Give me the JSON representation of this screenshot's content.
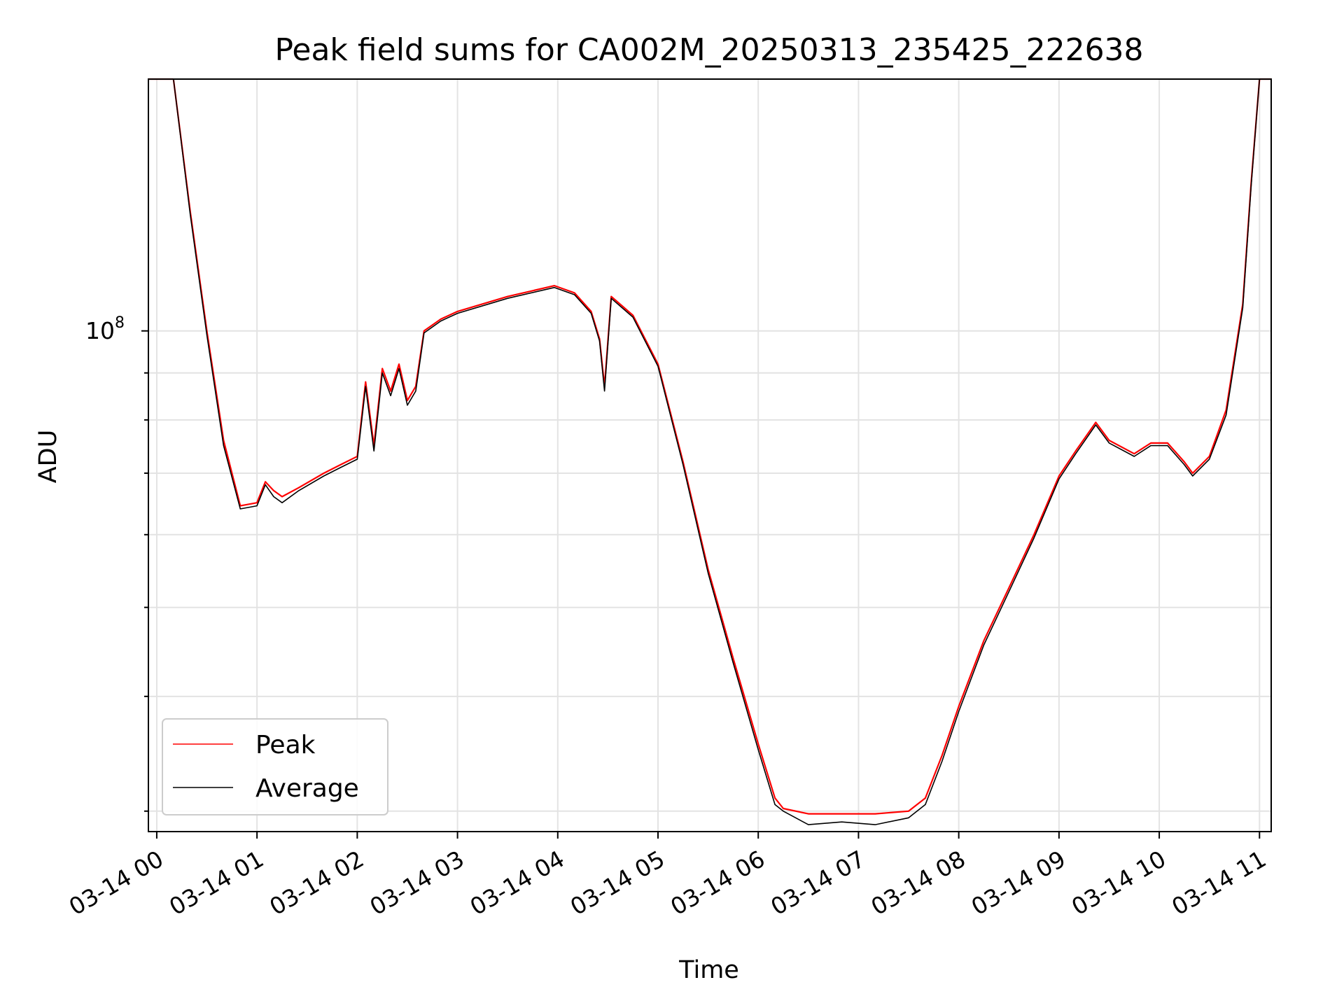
{
  "chart_data": {
    "type": "line",
    "title": "Peak field sums for CA002M_20250313_235425_222638",
    "xlabel": "Time",
    "ylabel": "ADU",
    "y_scale": "log",
    "x_tick_labels": [
      "03-14 00",
      "03-14 01",
      "03-14 02",
      "03-14 03",
      "03-14 04",
      "03-14 05",
      "03-14 06",
      "03-14 07",
      "03-14 08",
      "03-14 09",
      "03-14 10",
      "03-14 11"
    ],
    "y_tick_label_base": "10",
    "y_tick_label_exp": "8",
    "xlim": [
      "2025-03-13 23:55",
      "2025-03-14 11:07"
    ],
    "ylim": [
      28500000.0,
      188000000.0
    ],
    "grid": true,
    "legend": "lower-left",
    "series": [
      {
        "name": "Peak",
        "color": "#ff0000",
        "x": [
          "2025-03-13 23:55",
          "2025-03-14 00:10",
          "2025-03-14 00:20",
          "2025-03-14 00:30",
          "2025-03-14 00:40",
          "2025-03-14 00:50",
          "2025-03-14 01:00",
          "2025-03-14 01:05",
          "2025-03-14 01:10",
          "2025-03-14 01:15",
          "2025-03-14 01:25",
          "2025-03-14 01:40",
          "2025-03-14 01:50",
          "2025-03-14 02:00",
          "2025-03-14 02:05",
          "2025-03-14 02:10",
          "2025-03-14 02:15",
          "2025-03-14 02:20",
          "2025-03-14 02:25",
          "2025-03-14 02:30",
          "2025-03-14 02:35",
          "2025-03-14 02:40",
          "2025-03-14 02:50",
          "2025-03-14 03:00",
          "2025-03-14 03:30",
          "2025-03-14 03:58",
          "2025-03-14 04:10",
          "2025-03-14 04:20",
          "2025-03-14 04:25",
          "2025-03-14 04:28",
          "2025-03-14 04:32",
          "2025-03-14 04:45",
          "2025-03-14 05:00",
          "2025-03-14 05:15",
          "2025-03-14 05:30",
          "2025-03-14 05:45",
          "2025-03-14 06:00",
          "2025-03-14 06:10",
          "2025-03-14 06:15",
          "2025-03-14 06:30",
          "2025-03-14 06:50",
          "2025-03-14 07:10",
          "2025-03-14 07:30",
          "2025-03-14 07:40",
          "2025-03-14 07:50",
          "2025-03-14 08:00",
          "2025-03-14 08:15",
          "2025-03-14 08:30",
          "2025-03-14 08:45",
          "2025-03-14 09:00",
          "2025-03-14 09:10",
          "2025-03-14 09:22",
          "2025-03-14 09:30",
          "2025-03-14 09:45",
          "2025-03-14 09:55",
          "2025-03-14 10:05",
          "2025-03-14 10:15",
          "2025-03-14 10:20",
          "2025-03-14 10:30",
          "2025-03-14 10:40",
          "2025-03-14 10:50",
          "2025-03-14 10:55",
          "2025-03-14 11:00",
          "2025-03-14 11:07"
        ],
        "values": [
          188000000.0,
          188000000.0,
          135000000.0,
          100000000.0,
          76000000.0,
          64500000.0,
          65000000.0,
          68500000.0,
          67000000.0,
          66000000.0,
          67500000.0,
          70000000.0,
          71500000.0,
          73000000.0,
          88000000.0,
          75000000.0,
          91000000.0,
          86000000.0,
          92000000.0,
          84000000.0,
          87000000.0,
          100000000.0,
          103000000.0,
          105000000.0,
          109000000.0,
          112000000.0,
          110000000.0,
          105000000.0,
          98000000.0,
          87000000.0,
          109000000.0,
          104000000.0,
          92000000.0,
          72000000.0,
          55000000.0,
          44000000.0,
          35500000.0,
          31000000.0,
          30200000.0,
          29800000.0,
          29800000.0,
          29800000.0,
          30000000.0,
          31000000.0,
          34500000.0,
          39000000.0,
          46000000.0,
          52500000.0,
          60000000.0,
          69500000.0,
          74000000.0,
          79500000.0,
          76000000.0,
          73500000.0,
          75500000.0,
          75500000.0,
          72000000.0,
          70000000.0,
          73000000.0,
          82000000.0,
          107000000.0,
          145000000.0,
          188000000.0,
          188000000.0
        ]
      },
      {
        "name": "Average",
        "color": "#000000",
        "x": [
          "2025-03-13 23:55",
          "2025-03-14 00:10",
          "2025-03-14 00:20",
          "2025-03-14 00:30",
          "2025-03-14 00:40",
          "2025-03-14 00:50",
          "2025-03-14 01:00",
          "2025-03-14 01:05",
          "2025-03-14 01:10",
          "2025-03-14 01:15",
          "2025-03-14 01:25",
          "2025-03-14 01:40",
          "2025-03-14 01:50",
          "2025-03-14 02:00",
          "2025-03-14 02:05",
          "2025-03-14 02:10",
          "2025-03-14 02:15",
          "2025-03-14 02:20",
          "2025-03-14 02:25",
          "2025-03-14 02:30",
          "2025-03-14 02:35",
          "2025-03-14 02:40",
          "2025-03-14 02:50",
          "2025-03-14 03:00",
          "2025-03-14 03:30",
          "2025-03-14 03:58",
          "2025-03-14 04:10",
          "2025-03-14 04:20",
          "2025-03-14 04:25",
          "2025-03-14 04:28",
          "2025-03-14 04:32",
          "2025-03-14 04:45",
          "2025-03-14 05:00",
          "2025-03-14 05:15",
          "2025-03-14 05:30",
          "2025-03-14 05:45",
          "2025-03-14 06:00",
          "2025-03-14 06:10",
          "2025-03-14 06:15",
          "2025-03-14 06:30",
          "2025-03-14 06:50",
          "2025-03-14 07:10",
          "2025-03-14 07:30",
          "2025-03-14 07:40",
          "2025-03-14 07:50",
          "2025-03-14 08:00",
          "2025-03-14 08:15",
          "2025-03-14 08:30",
          "2025-03-14 08:45",
          "2025-03-14 09:00",
          "2025-03-14 09:10",
          "2025-03-14 09:22",
          "2025-03-14 09:30",
          "2025-03-14 09:45",
          "2025-03-14 09:55",
          "2025-03-14 10:05",
          "2025-03-14 10:15",
          "2025-03-14 10:20",
          "2025-03-14 10:30",
          "2025-03-14 10:40",
          "2025-03-14 10:50",
          "2025-03-14 10:55",
          "2025-03-14 11:00",
          "2025-03-14 11:07"
        ],
        "values": [
          188000000.0,
          188000000.0,
          134000000.0,
          99000000.0,
          75000000.0,
          64000000.0,
          64500000.0,
          68000000.0,
          66000000.0,
          65000000.0,
          67000000.0,
          69500000.0,
          71000000.0,
          72500000.0,
          87000000.0,
          74000000.0,
          90000000.0,
          85000000.0,
          91000000.0,
          83000000.0,
          86000000.0,
          99500000.0,
          102500000.0,
          104500000.0,
          108500000.0,
          111500000.0,
          109500000.0,
          104500000.0,
          97500000.0,
          86000000.0,
          108500000.0,
          103500000.0,
          91500000.0,
          71500000.0,
          54500000.0,
          43500000.0,
          35000000.0,
          30500000.0,
          30000000.0,
          29000000.0,
          29200000.0,
          29000000.0,
          29500000.0,
          30500000.0,
          34000000.0,
          38500000.0,
          45500000.0,
          52000000.0,
          59500000.0,
          69000000.0,
          73500000.0,
          79000000.0,
          75500000.0,
          73000000.0,
          75000000.0,
          75000000.0,
          71500000.0,
          69500000.0,
          72500000.0,
          81000000.0,
          106000000.0,
          144000000.0,
          188000000.0,
          188000000.0
        ]
      }
    ]
  }
}
